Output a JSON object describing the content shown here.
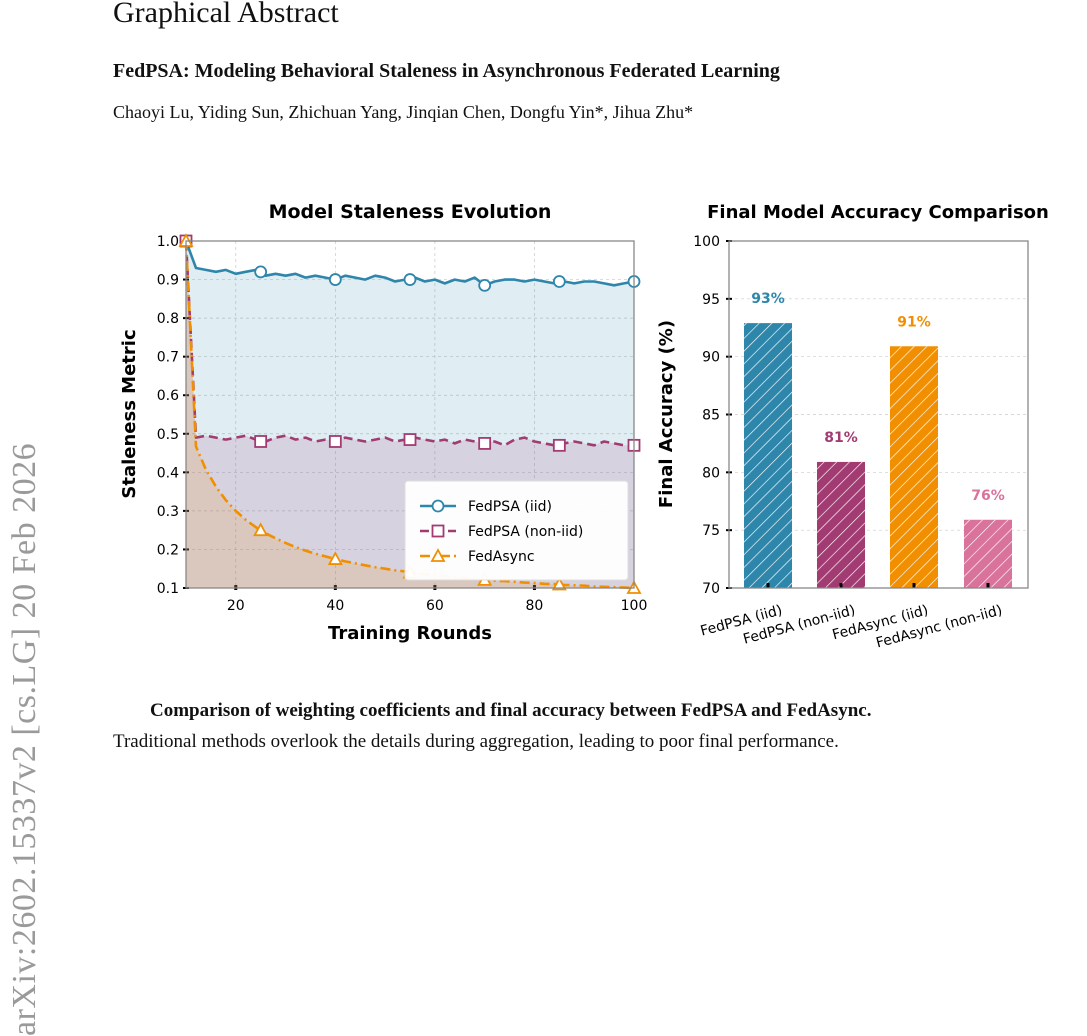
{
  "header": {
    "section": "Graphical Abstract",
    "title": "FedPSA: Modeling Behavioral Staleness in Asynchronous Federated Learning",
    "authors": "Chaoyi Lu, Yiding Sun, Zhichuan Yang, Jinqian Chen, Dongfu Yin*, Jihua Zhu*"
  },
  "sidebar": {
    "arxiv_id": "arXiv:2602.15337v2  [cs.LG]  20 Feb 2026"
  },
  "caption": {
    "line1": "Comparison of weighting coefficients and final accuracy between FedPSA and FedAsync.",
    "line2": "Traditional methods overlook the details during aggregation, leading to poor final performance."
  },
  "colors": {
    "iid": "#2E86AB",
    "noniid": "#A23B72",
    "fedasync": "#F18F01",
    "fedasync_noniid": "#D9739C"
  },
  "chart_data": [
    {
      "type": "line",
      "title": "Model Staleness Evolution",
      "xlabel": "Training Rounds",
      "ylabel": "Staleness Metric",
      "xlim": [
        10,
        100
      ],
      "ylim": [
        0.1,
        1.0
      ],
      "xticks": [
        "20",
        "40",
        "60",
        "80",
        "100"
      ],
      "xtick_values": [
        20,
        40,
        60,
        80,
        100
      ],
      "yticks": [
        "0.1",
        "0.2",
        "0.3",
        "0.4",
        "0.5",
        "0.6",
        "0.7",
        "0.8",
        "0.9",
        "1.0"
      ],
      "ytick_values": [
        0.1,
        0.2,
        0.3,
        0.4,
        0.5,
        0.6,
        0.7,
        0.8,
        0.9,
        1.0
      ],
      "grid": true,
      "legend_position": "bottom-right",
      "x": [
        10,
        12,
        14,
        16,
        18,
        20,
        22,
        24,
        26,
        28,
        30,
        32,
        34,
        36,
        38,
        40,
        42,
        44,
        46,
        48,
        50,
        52,
        54,
        56,
        58,
        60,
        62,
        64,
        66,
        68,
        70,
        72,
        74,
        76,
        78,
        80,
        82,
        84,
        86,
        88,
        90,
        92,
        94,
        96,
        98,
        100
      ],
      "marker_x": [
        10,
        25,
        40,
        55,
        70,
        85,
        100
      ],
      "series": [
        {
          "name": "FedPSA (iid)",
          "marker": "circle",
          "style": "solid",
          "values": [
            1.0,
            0.93,
            0.925,
            0.92,
            0.925,
            0.915,
            0.92,
            0.925,
            0.91,
            0.915,
            0.91,
            0.915,
            0.905,
            0.91,
            0.905,
            0.9,
            0.91,
            0.905,
            0.9,
            0.91,
            0.905,
            0.895,
            0.9,
            0.905,
            0.895,
            0.9,
            0.89,
            0.9,
            0.895,
            0.905,
            0.885,
            0.895,
            0.9,
            0.9,
            0.895,
            0.9,
            0.895,
            0.89,
            0.895,
            0.89,
            0.895,
            0.895,
            0.89,
            0.885,
            0.89,
            0.895
          ],
          "marker_values": [
            1.0,
            0.92,
            0.9,
            0.9,
            0.885,
            0.895,
            0.895
          ]
        },
        {
          "name": "FedPSA (non-iid)",
          "marker": "square",
          "style": "dashed",
          "values": [
            1.0,
            0.49,
            0.495,
            0.49,
            0.485,
            0.49,
            0.495,
            0.485,
            0.48,
            0.49,
            0.495,
            0.485,
            0.49,
            0.48,
            0.485,
            0.48,
            0.49,
            0.485,
            0.48,
            0.485,
            0.49,
            0.48,
            0.485,
            0.49,
            0.485,
            0.48,
            0.485,
            0.475,
            0.485,
            0.48,
            0.475,
            0.48,
            0.47,
            0.485,
            0.49,
            0.48,
            0.475,
            0.47,
            0.475,
            0.48,
            0.475,
            0.47,
            0.48,
            0.475,
            0.47,
            0.47
          ],
          "marker_values": [
            1.0,
            0.48,
            0.48,
            0.485,
            0.475,
            0.47,
            0.47
          ]
        },
        {
          "name": "FedAsync",
          "marker": "triangle",
          "style": "dashdot",
          "values": [
            1.0,
            0.467,
            0.407,
            0.363,
            0.328,
            0.3,
            0.277,
            0.258,
            0.242,
            0.229,
            0.217,
            0.206,
            0.197,
            0.189,
            0.182,
            0.175,
            0.169,
            0.164,
            0.159,
            0.154,
            0.15,
            0.146,
            0.143,
            0.139,
            0.136,
            0.133,
            0.131,
            0.128,
            0.126,
            0.124,
            0.121,
            0.119,
            0.118,
            0.116,
            0.114,
            0.113,
            0.111,
            0.11,
            0.108,
            0.107,
            0.106,
            0.104,
            0.103,
            0.102,
            0.101,
            0.1
          ],
          "marker_values": [
            1.0,
            0.25,
            0.175,
            0.14,
            0.121,
            0.109,
            0.1
          ]
        }
      ]
    },
    {
      "type": "bar",
      "title": "Final Model Accuracy Comparison",
      "xlabel": "",
      "ylabel": "Final Accuracy (%)",
      "ylim": [
        70,
        100
      ],
      "yticks": [
        "70",
        "75",
        "80",
        "85",
        "90",
        "95",
        "100"
      ],
      "ytick_values": [
        70,
        75,
        80,
        85,
        90,
        95,
        100
      ],
      "grid": true,
      "categories": [
        "FedPSA (iid)",
        "FedPSA (non-iid)",
        "FedAsync (iid)",
        "FedAsync (non-iid)"
      ],
      "values": [
        92.9,
        80.9,
        90.9,
        75.9
      ],
      "data_labels": [
        "93%",
        "81%",
        "91%",
        "76%"
      ]
    }
  ]
}
